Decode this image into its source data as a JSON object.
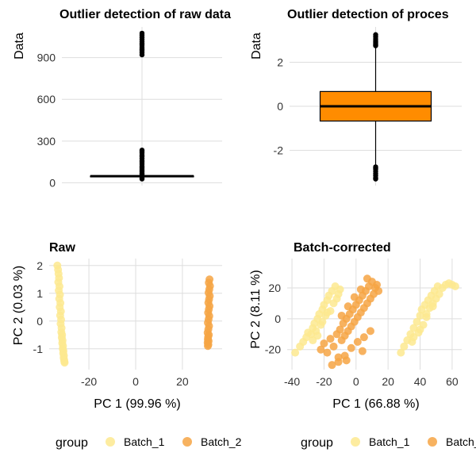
{
  "colors": {
    "grid": "#dedede",
    "batch_1": "#fde98f",
    "batch_2": "#f6a444",
    "box_fill": "#ff8c00",
    "ink": "#000000"
  },
  "legend": {
    "title": "group",
    "items": [
      "Batch_1",
      "Batch_2"
    ]
  },
  "chart_data": [
    {
      "type": "box",
      "title": "Outlier detection of raw data",
      "ylabel": "Data",
      "ylim": [
        -20,
        1120
      ],
      "yticks": [
        0,
        300,
        600,
        900
      ],
      "box": {
        "q1": 47,
        "median": 48,
        "q3": 49,
        "whisker_low": 47,
        "whisker_high": 50
      },
      "outliers": [
        28,
        35,
        42,
        55,
        62,
        70,
        80,
        90,
        100,
        110,
        120,
        135,
        150,
        160,
        175,
        190,
        200,
        215,
        225,
        235,
        920,
        935,
        950,
        960,
        975,
        990,
        1000,
        1015,
        1030,
        1045,
        1060,
        1075
      ]
    },
    {
      "type": "box",
      "title": "Outlier detection of proces",
      "ylabel": "Data",
      "ylim": [
        -3.6,
        3.6
      ],
      "yticks": [
        -2,
        0,
        2
      ],
      "box": {
        "q1": -0.67,
        "median": 0.0,
        "q3": 0.67,
        "whisker_low": -2.7,
        "whisker_high": 2.7
      },
      "outliers": [
        2.75,
        2.8,
        2.85,
        2.9,
        2.95,
        3.05,
        3.15,
        3.25,
        -2.75,
        -2.8,
        -2.85,
        -2.95,
        -3.05,
        -3.15,
        -3.25,
        -3.3
      ]
    },
    {
      "type": "scatter",
      "title": "Raw",
      "xlabel": "PC 1 (99.96 %)",
      "ylabel": "PC 2 (0.03 %)",
      "xlim": [
        -37,
        37
      ],
      "ylim": [
        -1.75,
        2.25
      ],
      "xticks": [
        -20,
        0,
        20
      ],
      "yticks": [
        -1,
        0,
        1,
        2
      ],
      "series": [
        {
          "name": "Batch_1",
          "x": [
            -33.5,
            -33.2,
            -33.0,
            -32.8,
            -33.1,
            -32.6,
            -32.9,
            -32.4,
            -32.7,
            -32.2,
            -32.5,
            -32.0,
            -32.3,
            -31.9,
            -32.1,
            -31.7,
            -31.8,
            -31.5,
            -31.6,
            -31.3,
            -31.4,
            -31.1,
            -31.2,
            -30.9,
            -31.0,
            -30.7,
            -30.8,
            -30.6,
            -30.5,
            -30.4
          ],
          "y": [
            2.0,
            1.85,
            1.7,
            1.55,
            1.4,
            1.25,
            1.1,
            0.95,
            0.8,
            0.65,
            0.5,
            0.35,
            0.2,
            0.05,
            -0.1,
            -0.25,
            -0.4,
            -0.5,
            -0.6,
            -0.7,
            -0.8,
            -0.9,
            -1.0,
            -1.08,
            -1.16,
            -1.24,
            -1.32,
            -1.4,
            -1.46,
            -1.5
          ]
        },
        {
          "name": "Batch_2",
          "x": [
            31.6,
            31.3,
            31.8,
            31.5,
            31.2,
            31.7,
            31.4,
            31.1,
            31.6,
            31.3,
            31.0,
            31.5,
            31.2,
            30.9,
            31.4,
            31.1,
            30.8,
            31.3,
            31.0,
            30.9,
            31.2,
            30.8,
            31.1,
            30.9
          ],
          "y": [
            1.5,
            1.38,
            1.26,
            1.14,
            1.02,
            0.9,
            0.78,
            0.66,
            0.54,
            0.42,
            0.3,
            0.18,
            0.06,
            -0.06,
            -0.18,
            -0.3,
            -0.42,
            -0.5,
            -0.58,
            -0.66,
            -0.72,
            -0.78,
            -0.85,
            -0.9
          ]
        }
      ]
    },
    {
      "type": "scatter",
      "title": "Batch-corrected",
      "xlabel": "PC 1 (66.88 %)",
      "ylabel": "PC 2 (8.11 %)",
      "xlim": [
        -43,
        66
      ],
      "ylim": [
        -33,
        39
      ],
      "xticks": [
        -40,
        -20,
        0,
        20,
        40,
        60
      ],
      "yticks": [
        -20,
        0,
        20
      ],
      "series": [
        {
          "name": "Batch_1",
          "x": [
            -38,
            -35,
            -33,
            -31,
            -30,
            -28,
            -27,
            -26,
            -25,
            -24,
            -23,
            -22,
            -21,
            -20,
            -19,
            -18,
            -17,
            -16,
            -15,
            -14,
            -13,
            -12,
            -11,
            -10,
            -27,
            -24,
            -21,
            -18,
            28,
            30,
            32,
            34,
            35,
            36,
            38,
            39,
            40,
            41,
            42,
            43,
            44,
            45,
            46,
            47,
            48,
            49,
            50,
            51,
            52,
            54,
            56,
            58,
            60,
            62,
            40,
            44,
            48,
            36
          ],
          "y": [
            -22,
            -18,
            -15,
            -12,
            -9,
            -10,
            -6,
            -3,
            -8,
            0,
            3,
            -4,
            6,
            9,
            2,
            12,
            15,
            5,
            18,
            10,
            21,
            13,
            16,
            19,
            -14,
            -11,
            -2,
            4,
            -22,
            -18,
            -14,
            -10,
            -15,
            -6,
            -2,
            -9,
            2,
            6,
            -4,
            9,
            3,
            12,
            7,
            15,
            10,
            18,
            13,
            21,
            16,
            20,
            22,
            23,
            22,
            21,
            -7,
            1,
            8,
            -12
          ]
        },
        {
          "name": "Batch_2",
          "x": [
            -22,
            -20,
            -18,
            -16,
            -14,
            -12,
            -11,
            -10,
            -9,
            -8,
            -7,
            -6,
            -5,
            -4,
            -3,
            -2,
            -1,
            0,
            1,
            2,
            3,
            4,
            5,
            6,
            7,
            8,
            9,
            10,
            11,
            12,
            13,
            14,
            -15,
            -11,
            -7,
            -3,
            1,
            5,
            9,
            -9,
            -5,
            -1,
            3,
            7,
            -6,
            4
          ],
          "y": [
            -20,
            -16,
            -22,
            -13,
            -18,
            -10,
            -25,
            -7,
            -14,
            -3,
            -11,
            0,
            -8,
            3,
            -5,
            6,
            -2,
            9,
            1,
            12,
            4,
            15,
            7,
            18,
            10,
            21,
            13,
            24,
            16,
            20,
            22,
            18,
            -30,
            -28,
            -24,
            -19,
            -15,
            -12,
            -8,
            2,
            8,
            14,
            19,
            26,
            -27,
            -21
          ]
        }
      ]
    }
  ]
}
